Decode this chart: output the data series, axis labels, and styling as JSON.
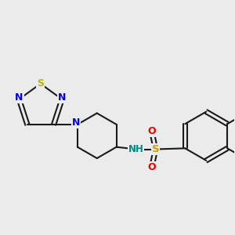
{
  "bg_color": "#ebebeb",
  "bond_color": "#1a1a1a",
  "bond_width": 1.5,
  "dbo": 0.055,
  "atom_colors": {
    "S_thia": "#b8b800",
    "S_sulf": "#c8a000",
    "N": "#0000ee",
    "O": "#ee0000",
    "NH": "#008888",
    "C": "#1a1a1a"
  },
  "font_size": 8.5
}
